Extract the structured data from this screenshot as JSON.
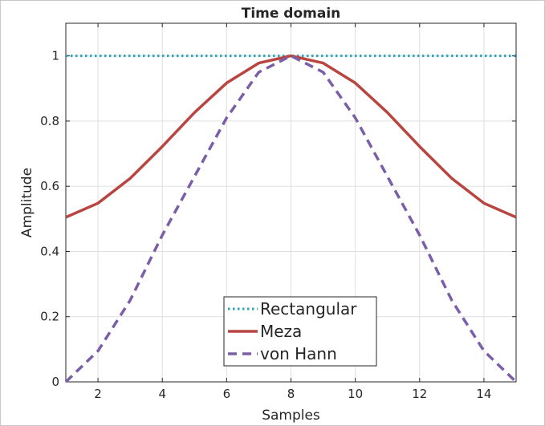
{
  "chart_data": {
    "type": "line",
    "title": "Time domain",
    "xlabel": "Samples",
    "ylabel": "Amplitude",
    "xlim": [
      1,
      15
    ],
    "ylim": [
      0,
      1.1
    ],
    "x_ticks": [
      2,
      4,
      6,
      8,
      10,
      12,
      14
    ],
    "y_ticks": [
      0,
      0.2,
      0.4,
      0.6,
      0.8,
      1
    ],
    "x_tick_labels": [
      "2",
      "4",
      "6",
      "8",
      "10",
      "12",
      "14"
    ],
    "y_tick_labels": [
      "0",
      "0.2",
      "0.4",
      "0.6",
      "0.8",
      "1"
    ],
    "grid": true,
    "legend_position": "bottom-center",
    "x": [
      1,
      2,
      3,
      4,
      5,
      6,
      7,
      8,
      9,
      10,
      11,
      12,
      13,
      14,
      15
    ],
    "series": [
      {
        "name": "Rectangular",
        "color": "#2ba4b4",
        "style": "dotted",
        "values": [
          1,
          1,
          1,
          1,
          1,
          1,
          1,
          1,
          1,
          1,
          1,
          1,
          1,
          1,
          1
        ]
      },
      {
        "name": "Meza",
        "color": "#b94540",
        "style": "solid",
        "values": [
          0.505,
          0.548,
          0.624,
          0.722,
          0.826,
          0.917,
          0.978,
          1.0,
          0.978,
          0.917,
          0.826,
          0.722,
          0.624,
          0.548,
          0.505
        ]
      },
      {
        "name": "von Hann",
        "color": "#7b5ea8",
        "style": "dashed",
        "values": [
          0.0,
          0.095,
          0.25,
          0.45,
          0.63,
          0.81,
          0.95,
          1.0,
          0.95,
          0.81,
          0.63,
          0.45,
          0.25,
          0.095,
          0.0
        ]
      }
    ]
  }
}
